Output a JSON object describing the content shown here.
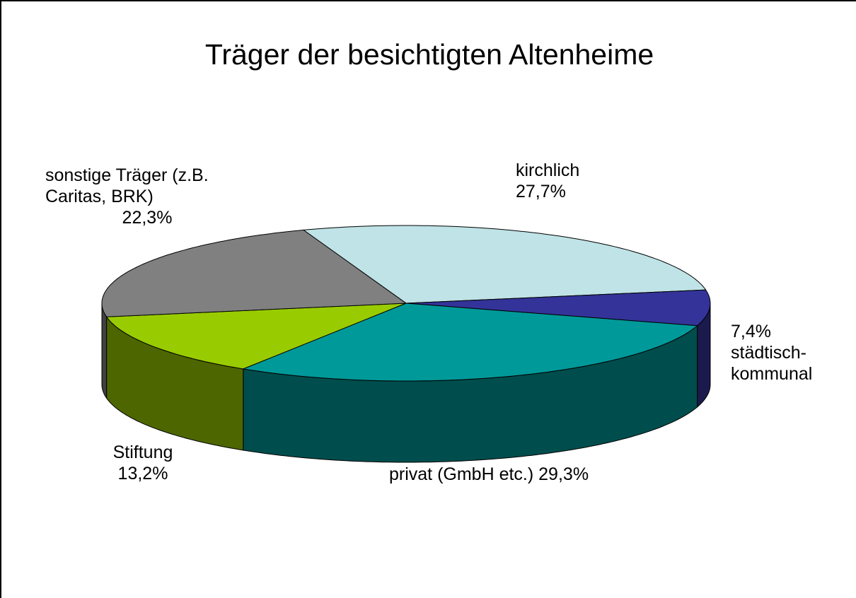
{
  "chart_data": {
    "type": "pie3d",
    "title": "Träger der besichtigten Altenheime",
    "categories": [
      "kirchlich",
      "städtisch-kommunal",
      "privat (GmbH etc.)",
      "Stiftung",
      "sonstige Träger (z.B. Caritas, BRK)"
    ],
    "values": [
      27.7,
      7.4,
      29.3,
      13.2,
      22.3
    ],
    "value_labels": [
      "27,7%",
      "7,4%",
      "29,3%",
      "13,2%",
      "22,3%"
    ],
    "colors": [
      "#bfe3e6",
      "#333399",
      "#009999",
      "#99cc00",
      "#808080"
    ]
  }
}
